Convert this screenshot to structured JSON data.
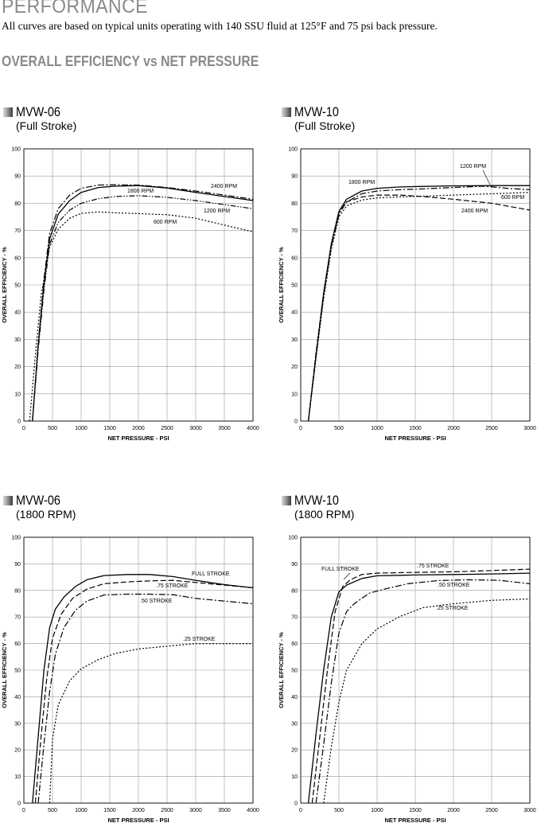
{
  "header": {
    "title": "PERFORMANCE",
    "subtitle": "All curves are based on typical units operating with 140 SSU fluid at 125°F and 75 psi back pressure."
  },
  "section_title": "OVERALL EFFICIENCY vs NET PRESSURE",
  "charts": [
    {
      "model": "MVW-06",
      "subtitle": "(Full Stroke)"
    },
    {
      "model": "MVW-10",
      "subtitle": "(Full Stroke)"
    },
    {
      "model": "MVW-06",
      "subtitle": "(1800 RPM)"
    },
    {
      "model": "MVW-10",
      "subtitle": "(1800 RPM)"
    }
  ],
  "chart_data": [
    {
      "type": "line",
      "xlabel": "NET PRESSURE - PSI",
      "ylabel": "OVERALL EFFICIENCY - %",
      "xlim": [
        0,
        4000
      ],
      "ylim": [
        0,
        100
      ],
      "xticks": [
        0,
        500,
        1000,
        1500,
        2000,
        2500,
        3000,
        3500,
        4000
      ],
      "yticks": [
        0,
        10,
        20,
        30,
        40,
        50,
        60,
        70,
        80,
        90,
        100
      ],
      "grid": true,
      "series": [
        {
          "name": "2400 RPM",
          "dash": "dashdot",
          "points": [
            [
              150,
              0
            ],
            [
              250,
              28
            ],
            [
              350,
              52
            ],
            [
              450,
              69
            ],
            [
              600,
              78
            ],
            [
              800,
              83
            ],
            [
              1000,
              85.5
            ],
            [
              1300,
              86.7
            ],
            [
              1600,
              86.8
            ],
            [
              2000,
              86.7
            ],
            [
              2500,
              85.8
            ],
            [
              3000,
              84.5
            ],
            [
              3500,
              83
            ],
            [
              4000,
              81.5
            ]
          ]
        },
        {
          "name": "1800 RPM",
          "dash": "solid",
          "points": [
            [
              150,
              0
            ],
            [
              250,
              28
            ],
            [
              350,
              50
            ],
            [
              450,
              67
            ],
            [
              600,
              76
            ],
            [
              800,
              81
            ],
            [
              1000,
              84
            ],
            [
              1300,
              85.8
            ],
            [
              1600,
              86.3
            ],
            [
              2000,
              86.5
            ],
            [
              2500,
              85.6
            ],
            [
              3000,
              84
            ],
            [
              3500,
              82.5
            ],
            [
              4000,
              81
            ]
          ]
        },
        {
          "name": "1200 RPM",
          "dash": "dashdotdot",
          "points": [
            [
              150,
              0
            ],
            [
              250,
              26
            ],
            [
              350,
              48
            ],
            [
              450,
              65
            ],
            [
              600,
              73
            ],
            [
              800,
              77.5
            ],
            [
              1000,
              80
            ],
            [
              1300,
              81.7
            ],
            [
              1600,
              82.5
            ],
            [
              2000,
              82.8
            ],
            [
              2500,
              82.2
            ],
            [
              3000,
              81
            ],
            [
              3500,
              79.5
            ],
            [
              4000,
              78
            ]
          ]
        },
        {
          "name": "600 RPM",
          "dash": "dotted",
          "points": [
            [
              100,
              0
            ],
            [
              200,
              24
            ],
            [
              300,
              46
            ],
            [
              450,
              64
            ],
            [
              600,
              70.5
            ],
            [
              800,
              74.5
            ],
            [
              1000,
              76.3
            ],
            [
              1300,
              76.8
            ],
            [
              1600,
              76.5
            ],
            [
              2000,
              76.2
            ],
            [
              2500,
              75.8
            ],
            [
              3000,
              74.5
            ],
            [
              3500,
              72
            ],
            [
              4000,
              69.5
            ]
          ]
        }
      ],
      "annotations": [
        "2400 RPM",
        "1800 RPM",
        "1200 RPM",
        "600 RPM"
      ]
    },
    {
      "type": "line",
      "xlabel": "NET PRESSURE - PSI",
      "ylabel": "OVERALL EFFICIENCY - %",
      "xlim": [
        0,
        3000
      ],
      "ylim": [
        0,
        100
      ],
      "xticks": [
        0,
        500,
        1000,
        1500,
        2000,
        2500,
        3000
      ],
      "yticks": [
        0,
        10,
        20,
        30,
        40,
        50,
        60,
        70,
        80,
        90,
        100
      ],
      "grid": true,
      "series": [
        {
          "name": "1800 RPM",
          "dash": "solid",
          "points": [
            [
              100,
              0
            ],
            [
              200,
              24
            ],
            [
              300,
              47
            ],
            [
              400,
              65
            ],
            [
              500,
              77
            ],
            [
              600,
              81.5
            ],
            [
              800,
              84.5
            ],
            [
              1000,
              85.5
            ],
            [
              1300,
              86
            ],
            [
              1600,
              86.2
            ],
            [
              2000,
              86.4
            ],
            [
              2500,
              86.5
            ],
            [
              3000,
              86.5
            ]
          ]
        },
        {
          "name": "1200 RPM",
          "dash": "dashdot",
          "points": [
            [
              100,
              0
            ],
            [
              200,
              24
            ],
            [
              300,
              46
            ],
            [
              400,
              64
            ],
            [
              500,
              76
            ],
            [
              600,
              80.5
            ],
            [
              800,
              83.5
            ],
            [
              1000,
              84.5
            ],
            [
              1300,
              85
            ],
            [
              1600,
              85.3
            ],
            [
              2000,
              85.8
            ],
            [
              2400,
              86.3
            ],
            [
              2700,
              85.5
            ],
            [
              3000,
              85
            ]
          ]
        },
        {
          "name": "600 RPM",
          "dash": "dotted",
          "points": [
            [
              100,
              0
            ],
            [
              200,
              23
            ],
            [
              300,
              45
            ],
            [
              400,
              63
            ],
            [
              500,
              75
            ],
            [
              600,
              79
            ],
            [
              800,
              81.2
            ],
            [
              1000,
              82
            ],
            [
              1300,
              82.4
            ],
            [
              1600,
              82.6
            ],
            [
              2000,
              83
            ],
            [
              2500,
              83.5
            ],
            [
              3000,
              84
            ]
          ]
        },
        {
          "name": "2400 RPM",
          "dash": "dashed",
          "points": [
            [
              100,
              0
            ],
            [
              200,
              25
            ],
            [
              300,
              47
            ],
            [
              400,
              65
            ],
            [
              500,
              76.5
            ],
            [
              600,
              80.5
            ],
            [
              800,
              82.3
            ],
            [
              1000,
              83
            ],
            [
              1300,
              83
            ],
            [
              1600,
              82.5
            ],
            [
              2000,
              81.5
            ],
            [
              2500,
              80
            ],
            [
              3000,
              77.5
            ]
          ]
        }
      ],
      "annotations": [
        "1200 RPM",
        "1800 RPM",
        "600 RPM",
        "2400 RPM"
      ]
    },
    {
      "type": "line",
      "xlabel": "NET PRESSURE - PSI",
      "ylabel": "OVERALL EFFICIENCY - %",
      "xlim": [
        0,
        4000
      ],
      "ylim": [
        0,
        100
      ],
      "xticks": [
        0,
        500,
        1000,
        1500,
        2000,
        2500,
        3000,
        3500,
        4000
      ],
      "yticks": [
        0,
        10,
        20,
        30,
        40,
        50,
        60,
        70,
        80,
        90,
        100
      ],
      "grid": true,
      "series": [
        {
          "name": "FULL STROKE",
          "dash": "solid",
          "points": [
            [
              150,
              0
            ],
            [
              250,
              25
            ],
            [
              350,
              50
            ],
            [
              450,
              66
            ],
            [
              550,
              73
            ],
            [
              700,
              77.5
            ],
            [
              900,
              81.5
            ],
            [
              1100,
              84
            ],
            [
              1400,
              85.6
            ],
            [
              1800,
              86
            ],
            [
              2200,
              86
            ],
            [
              2600,
              85.2
            ],
            [
              3000,
              83.8
            ],
            [
              3500,
              82.2
            ],
            [
              4000,
              81
            ]
          ]
        },
        {
          "name": ".75 STROKE",
          "dash": "dashed",
          "points": [
            [
              200,
              0
            ],
            [
              300,
              25
            ],
            [
              400,
              47
            ],
            [
              500,
              62
            ],
            [
              650,
              71
            ],
            [
              850,
              77
            ],
            [
              1100,
              80.5
            ],
            [
              1400,
              82.5
            ],
            [
              1800,
              83.2
            ],
            [
              2200,
              83.6
            ],
            [
              2600,
              83.8
            ],
            [
              3000,
              83
            ],
            [
              3500,
              82
            ],
            [
              4000,
              81
            ]
          ]
        },
        {
          "name": ".50 STROKE",
          "dash": "dashdot",
          "points": [
            [
              250,
              0
            ],
            [
              350,
              22
            ],
            [
              450,
              42
            ],
            [
              550,
              56
            ],
            [
              700,
              66
            ],
            [
              900,
              72.5
            ],
            [
              1100,
              76
            ],
            [
              1400,
              78.3
            ],
            [
              1800,
              78.6
            ],
            [
              2200,
              78.6
            ],
            [
              2600,
              78.4
            ],
            [
              3000,
              77
            ],
            [
              3500,
              76
            ],
            [
              4000,
              75
            ]
          ]
        },
        {
          "name": ".25 STROKE",
          "dash": "dotted",
          "points": [
            [
              450,
              0
            ],
            [
              500,
              24
            ],
            [
              600,
              37
            ],
            [
              800,
              46
            ],
            [
              1000,
              50.5
            ],
            [
              1300,
              54
            ],
            [
              1600,
              56.3
            ],
            [
              2000,
              58
            ],
            [
              2500,
              59
            ],
            [
              3000,
              60
            ],
            [
              3500,
              60
            ],
            [
              4000,
              60
            ]
          ]
        }
      ],
      "annotations": [
        "FULL STROKE",
        ".75 STROKE",
        ".50 STROKE",
        ".25 STROKE"
      ]
    },
    {
      "type": "line",
      "xlabel": "NET PRESSURE - PSI",
      "ylabel": "OVERALL EFFICIENCY - %",
      "xlim": [
        0,
        3000
      ],
      "ylim": [
        0,
        100
      ],
      "xticks": [
        0,
        500,
        1000,
        1500,
        2000,
        2500,
        3000
      ],
      "yticks": [
        0,
        10,
        20,
        30,
        40,
        50,
        60,
        70,
        80,
        90,
        100
      ],
      "grid": true,
      "series": [
        {
          "name": "FULL STROKE",
          "dash": "solid",
          "points": [
            [
              100,
              0
            ],
            [
              200,
              26
            ],
            [
              300,
              50
            ],
            [
              400,
              70
            ],
            [
              500,
              79.5
            ],
            [
              600,
              82
            ],
            [
              800,
              84.5
            ],
            [
              1000,
              85.5
            ],
            [
              1500,
              85.8
            ],
            [
              2000,
              86
            ],
            [
              2500,
              86.2
            ],
            [
              3000,
              86.5
            ]
          ]
        },
        {
          "name": ".75 STROKE",
          "dash": "dashed",
          "points": [
            [
              150,
              0
            ],
            [
              250,
              25
            ],
            [
              350,
              50
            ],
            [
              450,
              72
            ],
            [
              550,
              81.5
            ],
            [
              650,
              84
            ],
            [
              800,
              86
            ],
            [
              1000,
              86.5
            ],
            [
              1500,
              86.8
            ],
            [
              2000,
              87
            ],
            [
              2500,
              87.5
            ],
            [
              3000,
              88
            ]
          ]
        },
        {
          "name": ".50 STROKE",
          "dash": "dashdot",
          "points": [
            [
              200,
              0
            ],
            [
              300,
              22
            ],
            [
              400,
              45
            ],
            [
              500,
              64
            ],
            [
              600,
              72
            ],
            [
              700,
              75
            ],
            [
              900,
              79
            ],
            [
              1100,
              80.5
            ],
            [
              1400,
              82.5
            ],
            [
              1800,
              83.7
            ],
            [
              2200,
              84
            ],
            [
              2600,
              83.8
            ],
            [
              3000,
              82.5
            ]
          ]
        },
        {
          "name": ".25 STROKE",
          "dash": "dotted",
          "points": [
            [
              300,
              0
            ],
            [
              400,
              21
            ],
            [
              500,
              38
            ],
            [
              600,
              50
            ],
            [
              800,
              60
            ],
            [
              1000,
              65.5
            ],
            [
              1300,
              70.2
            ],
            [
              1600,
              73.5
            ],
            [
              2000,
              75
            ],
            [
              2500,
              76.3
            ],
            [
              3000,
              76.8
            ]
          ]
        }
      ],
      "annotations": [
        "FULL STROKE",
        ".75 STROKE",
        ".50 STROKE",
        ".25 STROKE"
      ]
    }
  ]
}
